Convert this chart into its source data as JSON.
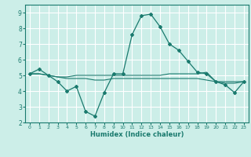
{
  "xlabel": "Humidex (Indice chaleur)",
  "ylabel": "",
  "background_color": "#cceee8",
  "grid_color": "#ffffff",
  "line_color": "#1a7a6e",
  "xlim": [
    -0.5,
    23.5
  ],
  "ylim": [
    2,
    9.5
  ],
  "yticks": [
    2,
    3,
    4,
    5,
    6,
    7,
    8,
    9
  ],
  "xtick_labels": [
    "0",
    "1",
    "2",
    "3",
    "4",
    "5",
    "6",
    "7",
    "8",
    "9",
    "10",
    "11",
    "12",
    "13",
    "14",
    "15",
    "16",
    "17",
    "18",
    "19",
    "20",
    "21",
    "22",
    "23"
  ],
  "series": [
    [
      5.1,
      5.4,
      5.0,
      4.6,
      4.0,
      4.3,
      2.7,
      2.4,
      3.9,
      5.1,
      5.1,
      7.6,
      8.8,
      8.9,
      8.1,
      7.0,
      6.6,
      5.9,
      5.2,
      5.1,
      4.6,
      4.4,
      3.9,
      4.6
    ],
    [
      5.1,
      5.1,
      5.0,
      4.9,
      4.9,
      5.0,
      5.0,
      5.0,
      5.0,
      5.0,
      5.0,
      5.0,
      5.0,
      5.0,
      5.0,
      5.1,
      5.1,
      5.1,
      5.1,
      5.2,
      4.6,
      4.6,
      4.6,
      4.6
    ],
    [
      5.1,
      5.1,
      5.0,
      4.9,
      4.8,
      4.8,
      4.8,
      4.7,
      4.7,
      4.8,
      4.8,
      4.8,
      4.8,
      4.8,
      4.8,
      4.8,
      4.8,
      4.8,
      4.8,
      4.7,
      4.6,
      4.5,
      4.5,
      4.6
    ]
  ]
}
